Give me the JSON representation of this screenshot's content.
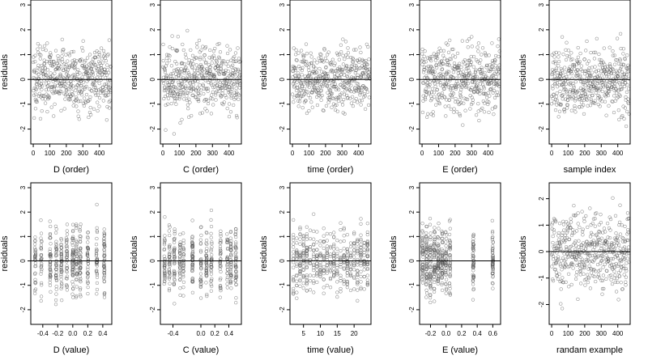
{
  "chart_data": [
    {
      "type": "scatter",
      "xlabel": "D (order)",
      "ylabel": "residuals",
      "xlim": [
        -15,
        475
      ],
      "ylim": [
        -2.6,
        3.2
      ],
      "x_ticks": [
        0,
        100,
        200,
        300,
        400
      ],
      "x_tick_labels": [
        "0",
        "100",
        "200",
        "300",
        "400"
      ],
      "y_ticks": [
        -2,
        -1,
        0,
        1,
        2,
        3
      ],
      "y_tick_labels": [
        "-2",
        "-1",
        "0",
        "1",
        "2",
        "3"
      ],
      "reference_line_y": 0,
      "n_points": 470,
      "point_style": "open-circle",
      "x_distribution": "uniform",
      "y_distribution": "roughly normal, sd ~0.9"
    },
    {
      "type": "scatter",
      "xlabel": "C (order)",
      "ylabel": "residuals",
      "xlim": [
        -15,
        475
      ],
      "ylim": [
        -2.6,
        3.2
      ],
      "x_ticks": [
        0,
        100,
        200,
        300,
        400
      ],
      "x_tick_labels": [
        "0",
        "100",
        "200",
        "300",
        "400"
      ],
      "y_ticks": [
        -2,
        -1,
        0,
        1,
        2,
        3
      ],
      "y_tick_labels": [
        "-2",
        "-1",
        "0",
        "1",
        "2",
        "3"
      ],
      "reference_line_y": 0,
      "n_points": 470,
      "point_style": "open-circle",
      "x_distribution": "uniform",
      "y_distribution": "roughly normal, sd ~0.9"
    },
    {
      "type": "scatter",
      "xlabel": "time (order)",
      "ylabel": "residuals",
      "xlim": [
        -15,
        475
      ],
      "ylim": [
        -2.6,
        3.2
      ],
      "x_ticks": [
        0,
        100,
        200,
        300,
        400
      ],
      "x_tick_labels": [
        "0",
        "100",
        "200",
        "300",
        "400"
      ],
      "y_ticks": [
        -2,
        -1,
        0,
        1,
        2,
        3
      ],
      "y_tick_labels": [
        "-2",
        "-1",
        "0",
        "1",
        "2",
        "3"
      ],
      "reference_line_y": 0,
      "n_points": 470,
      "point_style": "open-circle",
      "x_distribution": "uniform",
      "y_distribution": "roughly normal, sd ~0.9"
    },
    {
      "type": "scatter",
      "xlabel": "E (order)",
      "ylabel": "residuals",
      "xlim": [
        -15,
        475
      ],
      "ylim": [
        -2.6,
        3.2
      ],
      "x_ticks": [
        0,
        100,
        200,
        300,
        400
      ],
      "x_tick_labels": [
        "0",
        "100",
        "200",
        "300",
        "400"
      ],
      "y_ticks": [
        -2,
        -1,
        0,
        1,
        2,
        3
      ],
      "y_tick_labels": [
        "-2",
        "-1",
        "0",
        "1",
        "2",
        "3"
      ],
      "reference_line_y": 0,
      "n_points": 470,
      "point_style": "open-circle",
      "x_distribution": "uniform",
      "y_distribution": "roughly normal, sd ~0.9"
    },
    {
      "type": "scatter",
      "xlabel": "sample index",
      "ylabel": "residuals",
      "xlim": [
        -15,
        475
      ],
      "ylim": [
        -2.6,
        3.2
      ],
      "x_ticks": [
        0,
        100,
        200,
        300,
        400
      ],
      "x_tick_labels": [
        "0",
        "100",
        "200",
        "300",
        "400"
      ],
      "y_ticks": [
        -2,
        -1,
        0,
        1,
        2,
        3
      ],
      "y_tick_labels": [
        "-2",
        "-1",
        "0",
        "1",
        "2",
        "3"
      ],
      "reference_line_y": 0,
      "n_points": 470,
      "point_style": "open-circle",
      "x_distribution": "uniform",
      "y_distribution": "roughly normal, sd ~0.9"
    },
    {
      "type": "scatter",
      "xlabel": "D (value)",
      "ylabel": "residuals",
      "xlim": [
        -0.56,
        0.52
      ],
      "ylim": [
        -2.6,
        3.2
      ],
      "x_ticks": [
        -0.4,
        -0.2,
        0.0,
        0.2,
        0.4
      ],
      "x_tick_labels": [
        "-0.4",
        "-0.2",
        "0.0",
        "0.2",
        "0.4"
      ],
      "y_ticks": [
        -2,
        -1,
        0,
        1,
        2,
        3
      ],
      "y_tick_labels": [
        "-2",
        "-1",
        "0",
        "1",
        "2",
        "3"
      ],
      "reference_line_y": 0,
      "n_points": 470,
      "point_style": "open-circle",
      "x_distribution": "clustered at discrete levels",
      "x_levels": [
        -0.5,
        -0.42,
        -0.3,
        -0.22,
        -0.15,
        -0.08,
        0.0,
        0.05,
        0.1,
        0.2,
        0.32,
        0.42
      ],
      "y_distribution": "roughly normal, sd ~0.9"
    },
    {
      "type": "scatter",
      "xlabel": "C (value)",
      "ylabel": "residuals",
      "xlim": [
        -0.58,
        0.58
      ],
      "ylim": [
        -2.6,
        3.2
      ],
      "x_ticks": [
        -0.4,
        0.0,
        0.2,
        0.4
      ],
      "x_tick_labels": [
        "-0.4",
        "0.0",
        "0.2",
        "0.4"
      ],
      "y_ticks": [
        -2,
        -1,
        0,
        1,
        2,
        3
      ],
      "y_tick_labels": [
        "-2",
        "-1",
        "0",
        "1",
        "2",
        "3"
      ],
      "reference_line_y": 0,
      "n_points": 470,
      "point_style": "open-circle",
      "x_distribution": "clustered at discrete levels",
      "x_levels": [
        -0.52,
        -0.45,
        -0.38,
        -0.3,
        -0.25,
        -0.12,
        0.0,
        0.08,
        0.15,
        0.28,
        0.38,
        0.43,
        0.5
      ],
      "y_distribution": "roughly normal, sd ~0.9"
    },
    {
      "type": "scatter",
      "xlabel": "time (value)",
      "ylabel": "residuals",
      "xlim": [
        1,
        25
      ],
      "ylim": [
        -2.6,
        3.2
      ],
      "x_ticks": [
        5,
        10,
        15,
        20
      ],
      "x_tick_labels": [
        "5",
        "10",
        "15",
        "20"
      ],
      "y_ticks": [
        -2,
        -1,
        0,
        1,
        2,
        3
      ],
      "y_tick_labels": [
        "-2",
        "-1",
        "0",
        "1",
        "2",
        "3"
      ],
      "reference_line_y": 0,
      "n_points": 470,
      "point_style": "open-circle",
      "x_distribution": "integer values 2-24",
      "y_distribution": "roughly normal, sd ~0.9"
    },
    {
      "type": "scatter",
      "xlabel": "E (value)",
      "ylabel": "residuals",
      "xlim": [
        -0.34,
        0.7
      ],
      "ylim": [
        -2.6,
        3.2
      ],
      "x_ticks": [
        -0.2,
        0.0,
        0.2,
        0.4,
        0.6
      ],
      "x_tick_labels": [
        "-0.2",
        "0.0",
        "0.2",
        "0.4",
        "0.6"
      ],
      "y_ticks": [
        -2,
        -1,
        0,
        1,
        2,
        3
      ],
      "y_tick_labels": [
        "-2",
        "-1",
        "0",
        "1",
        "2",
        "3"
      ],
      "reference_line_y": 0,
      "n_points": 470,
      "point_style": "open-circle",
      "x_distribution": "clustered at discrete levels",
      "x_levels": [
        -0.3,
        -0.25,
        -0.2,
        -0.15,
        -0.1,
        -0.05,
        0.0,
        0.05,
        0.35,
        0.6
      ],
      "y_distribution": "roughly normal, sd ~0.9"
    },
    {
      "type": "scatter",
      "xlabel": "randam example",
      "ylabel": "residuals",
      "xlim": [
        -15,
        475
      ],
      "ylim": [
        -2.75,
        2.6
      ],
      "x_ticks": [
        0,
        100,
        200,
        300,
        400
      ],
      "x_tick_labels": [
        "0",
        "100",
        "200",
        "300",
        "400"
      ],
      "y_ticks": [
        -2,
        -1,
        0,
        1,
        2
      ],
      "y_tick_labels": [
        "-2",
        "-1",
        "0",
        "1",
        "2"
      ],
      "reference_line_y": 0,
      "n_points": 470,
      "point_style": "open-circle",
      "x_distribution": "uniform",
      "y_distribution": "roughly normal, sd ~1.0"
    }
  ]
}
